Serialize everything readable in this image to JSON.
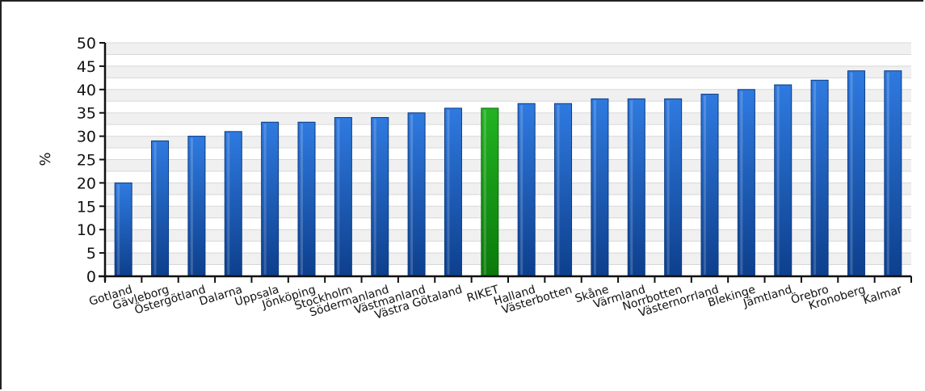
{
  "chart_data": {
    "type": "bar",
    "ylabel": "%",
    "ylim": [
      0,
      50
    ],
    "yticks": [
      0,
      5,
      10,
      15,
      20,
      25,
      30,
      35,
      40,
      45,
      50
    ],
    "grid": true,
    "categories": [
      "Gotland",
      "Gävleborg",
      "Östergötland",
      "Dalarna",
      "Uppsala",
      "Jönköping",
      "Stockholm",
      "Södermanland",
      "Västmanland",
      "Västra Götaland",
      "RIKET",
      "Halland",
      "Västerbotten",
      "Skåne",
      "Värmland",
      "Norrbotten",
      "Västernorrland",
      "Blekinge",
      "Jämtland",
      "Örebro",
      "Kronoberg",
      "Kalmar"
    ],
    "values": [
      20,
      29,
      30,
      31,
      33,
      33,
      34,
      34,
      35,
      36,
      36,
      37,
      37,
      38,
      38,
      38,
      39,
      40,
      41,
      42,
      44,
      44
    ],
    "highlight_category": "RIKET",
    "colors": {
      "bar": "#1e5fb8",
      "highlight": "#22a022",
      "grid": "#d8d8d8",
      "band": "#f0f0f0"
    }
  }
}
